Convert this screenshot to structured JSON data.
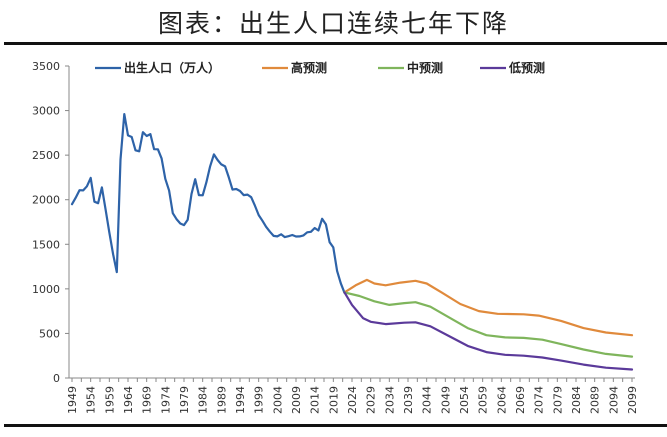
{
  "title": "图表：出生人口连续七年下降",
  "chart_data": {
    "type": "line",
    "title": "图表：出生人口连续七年下降",
    "xlabel": "",
    "ylabel": "",
    "ylim": [
      0,
      3500
    ],
    "xlim": [
      1949,
      2100
    ],
    "yticks": [
      0,
      500,
      1000,
      1500,
      2000,
      2500,
      3000,
      3500
    ],
    "xticks": [
      1949,
      1954,
      1959,
      1964,
      1969,
      1974,
      1979,
      1984,
      1989,
      1994,
      1999,
      2004,
      2009,
      2014,
      2019,
      2024,
      2029,
      2034,
      2039,
      2044,
      2049,
      2054,
      2059,
      2064,
      2069,
      2074,
      2079,
      2084,
      2089,
      2094,
      2099
    ],
    "grid": false,
    "legend": "top",
    "series": [
      {
        "name": "出生人口（万人）",
        "color": "#2e63a8",
        "x": [
          1949,
          1950,
          1951,
          1952,
          1953,
          1954,
          1955,
          1956,
          1957,
          1958,
          1959,
          1960,
          1961,
          1962,
          1963,
          1964,
          1965,
          1966,
          1967,
          1968,
          1969,
          1970,
          1971,
          1972,
          1973,
          1974,
          1975,
          1976,
          1977,
          1978,
          1979,
          1980,
          1981,
          1982,
          1983,
          1984,
          1985,
          1986,
          1987,
          1988,
          1989,
          1990,
          1991,
          1992,
          1993,
          1994,
          1995,
          1996,
          1997,
          1998,
          1999,
          2000,
          2001,
          2002,
          2003,
          2004,
          2005,
          2006,
          2007,
          2008,
          2009,
          2010,
          2011,
          2012,
          2013,
          2014,
          2015,
          2016,
          2017,
          2018,
          2019,
          2020,
          2021,
          2022
        ],
        "y": [
          1950,
          2023,
          2107,
          2105,
          2151,
          2245,
          1978,
          1961,
          2138,
          1889,
          1635,
          1389,
          1188,
          2451,
          2960,
          2721,
          2704,
          2554,
          2543,
          2757,
          2715,
          2736,
          2567,
          2566,
          2463,
          2235,
          2102,
          1849,
          1783,
          1733,
          1715,
          1776,
          2064,
          2230,
          2052,
          2050,
          2196,
          2374,
          2508,
          2445,
          2396,
          2374,
          2250,
          2113,
          2120,
          2098,
          2052,
          2057,
          2028,
          1934,
          1827,
          1765,
          1696,
          1641,
          1594,
          1588,
          1612,
          1581,
          1591,
          1604,
          1587,
          1588,
          1600,
          1635,
          1640,
          1683,
          1655,
          1786,
          1723,
          1523,
          1465,
          1202,
          1062,
          956
        ]
      },
      {
        "name": "高预测",
        "color": "#e08a3c",
        "x": [
          2022,
          2025,
          2028,
          2030,
          2033,
          2037,
          2041,
          2044,
          2048,
          2053,
          2058,
          2063,
          2070,
          2074,
          2080,
          2086,
          2092,
          2099
        ],
        "y": [
          960,
          1040,
          1100,
          1060,
          1040,
          1070,
          1090,
          1060,
          960,
          830,
          750,
          720,
          715,
          700,
          640,
          560,
          510,
          480
        ]
      },
      {
        "name": "中预测",
        "color": "#7fb55c",
        "x": [
          2022,
          2026,
          2030,
          2034,
          2038,
          2041,
          2045,
          2050,
          2055,
          2060,
          2065,
          2070,
          2075,
          2080,
          2086,
          2092,
          2099
        ],
        "y": [
          960,
          920,
          860,
          820,
          840,
          850,
          800,
          680,
          560,
          480,
          455,
          450,
          430,
          380,
          320,
          270,
          240
        ]
      },
      {
        "name": "低预测",
        "color": "#5b3a9a",
        "x": [
          2022,
          2024,
          2027,
          2029,
          2033,
          2038,
          2041,
          2045,
          2050,
          2055,
          2060,
          2065,
          2070,
          2075,
          2080,
          2086,
          2092,
          2099
        ],
        "y": [
          960,
          820,
          670,
          630,
          605,
          620,
          625,
          580,
          470,
          360,
          290,
          260,
          250,
          230,
          195,
          150,
          115,
          95
        ]
      }
    ]
  }
}
